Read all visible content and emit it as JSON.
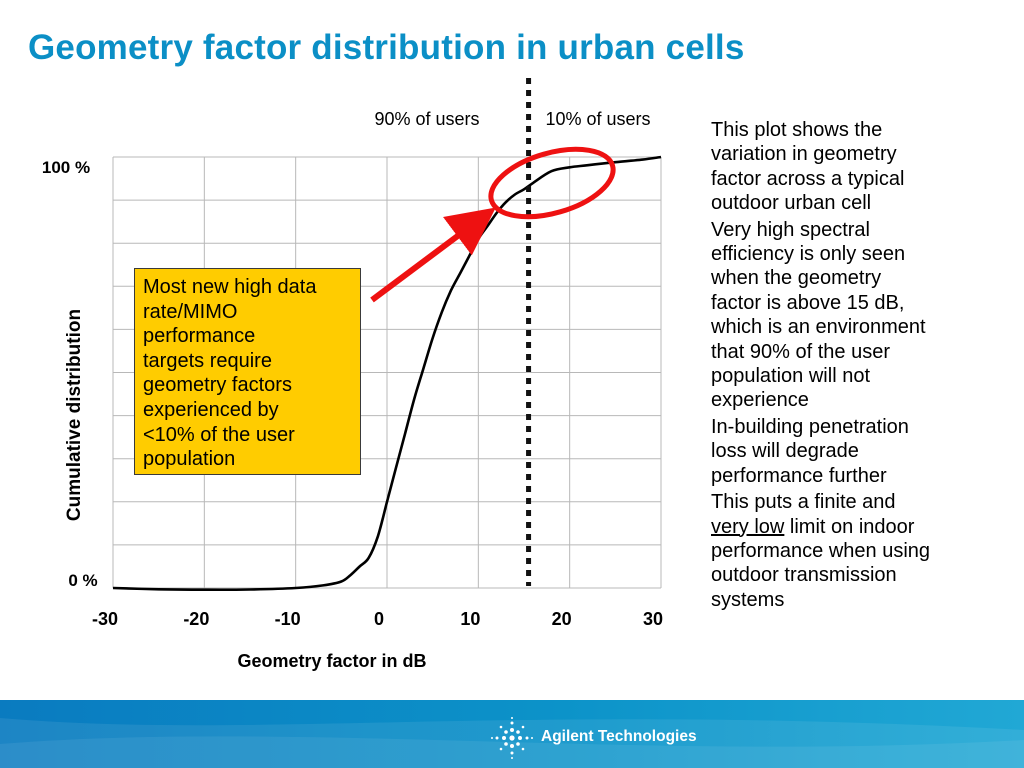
{
  "title": "Geometry factor distribution in urban cells",
  "chart_data": {
    "type": "line",
    "xlabel": "Geometry factor in dB",
    "ylabel": "Cumulative distribution",
    "x_ticks": [
      "-30",
      "-20",
      "-10",
      "0",
      "10",
      "20",
      "30"
    ],
    "y_ticks": [
      "0 %",
      "100 %"
    ],
    "xlim": [
      -30,
      30
    ],
    "ylim": [
      0,
      100
    ],
    "grid": true,
    "series": [
      {
        "points": [
          [
            -30,
            0
          ],
          [
            -25,
            -0.3
          ],
          [
            -20,
            -0.4
          ],
          [
            -15,
            -0.35
          ],
          [
            -10,
            0
          ],
          [
            -7,
            0.6
          ],
          [
            -5,
            1.5
          ],
          [
            -4,
            3
          ],
          [
            -3,
            5
          ],
          [
            -2,
            7
          ],
          [
            -1,
            12
          ],
          [
            0,
            20
          ],
          [
            1,
            28
          ],
          [
            2,
            36
          ],
          [
            3,
            44
          ],
          [
            4,
            51
          ],
          [
            5,
            58
          ],
          [
            6,
            64
          ],
          [
            7,
            69
          ],
          [
            8,
            73
          ],
          [
            9,
            77
          ],
          [
            10,
            81
          ],
          [
            11,
            84
          ],
          [
            12,
            87
          ],
          [
            13,
            89.5
          ],
          [
            14,
            91.3
          ],
          [
            15,
            92.5
          ],
          [
            16,
            94
          ],
          [
            18,
            96.7
          ],
          [
            20,
            97.6
          ],
          [
            22,
            98.1
          ],
          [
            25,
            98.8
          ],
          [
            28,
            99.4
          ],
          [
            30,
            100
          ]
        ]
      }
    ],
    "vertical_marker": {
      "x": 15.5,
      "style": "dotted",
      "color": "#111111"
    },
    "region_labels": [
      "90% of users",
      "10% of users"
    ],
    "highlight_ellipse_color": "#ee1111",
    "arrow_color": "#ee1111"
  },
  "callout": {
    "lines": [
      "Most new high data",
      "rate/MIMO",
      "performance",
      "targets require",
      "geometry factors",
      "experienced by",
      "<10% of the user",
      "population"
    ],
    "color": "#ffcc00"
  },
  "notes": {
    "p1": [
      "This plot shows the",
      "variation in geometry",
      "factor across a typical",
      "outdoor urban cell"
    ],
    "p2": [
      "Very high spectral",
      "efficiency is only seen",
      "when the geometry",
      "factor is above 15 dB,",
      "which is an environment",
      "that 90% of the user",
      "population will not",
      "experience"
    ],
    "p3": [
      "In-building penetration",
      "loss will degrade",
      "performance further"
    ],
    "p4_l1": "This puts a finite and",
    "p4_l2_underlined": "very low",
    "p4_l2_rest": " limit on indoor",
    "p4_rest": [
      "performance when using",
      "outdoor transmission",
      "systems"
    ]
  },
  "footer": {
    "brand": "Agilent Technologies",
    "color": "#0c93c9"
  }
}
